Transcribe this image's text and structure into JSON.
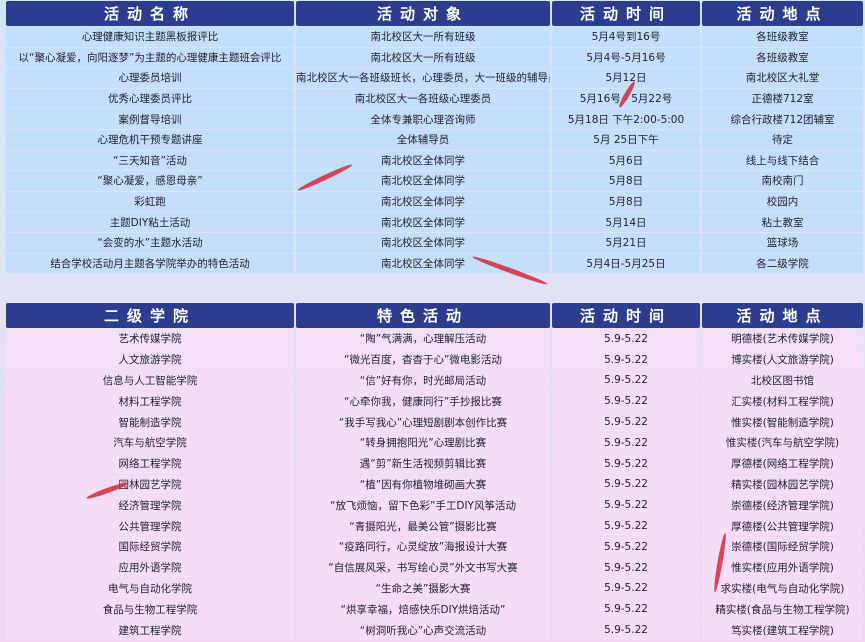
{
  "table1": {
    "header": [
      "活动名称",
      "活动对象",
      "活动时间",
      "活动地点"
    ],
    "rows": [
      [
        "心理健康知识主题黑板报评比",
        "南北校区大一所有班级",
        "5月4号到16号",
        "各班级教室"
      ],
      [
        "以“聚心凝爱，向阳逐梦”为主题的心理健康主题班会评比",
        "南北校区大一所有班级",
        "5月4号-5月16号",
        "各班级教室"
      ],
      [
        "心理委员培训",
        "南北校区大一各班级班长，心理委员，大一班级的辅导员",
        "5月12日",
        "南北校区大礼堂"
      ],
      [
        "优秀心理委员评比",
        "南北校区大一各班级心理委员",
        "5月16号 - 5月22号",
        "正德楼712室"
      ],
      [
        "案例督导培训",
        "全体专兼职心理咨询师",
        "5月18日 下午2:00-5:00",
        "综合行政楼712团辅室"
      ],
      [
        "心理危机干预专题讲座",
        "全体辅导员",
        "5月 25日下午",
        "待定"
      ],
      [
        "“三天知音”活动",
        "南北校区全体同学",
        "5月6日",
        "线上与线下结合"
      ],
      [
        "“聚心凝爱，感恩母亲”",
        "南北校区全体同学",
        "5月8日",
        "南校南门"
      ],
      [
        "彩虹跑",
        "南北校区全体同学",
        "5月8日",
        "校园内"
      ],
      [
        "主题DIY粘土活动",
        "南北校区全体同学",
        "5月14日",
        "粘土教室"
      ],
      [
        "“会变的水”主题水活动",
        "南北校区全体同学",
        "5月21日",
        "篮球场"
      ],
      [
        "结合学校活动月主题各学院举办的特色活动",
        "南北校区全体同学",
        "5月4日-5月25日",
        "各二级学院"
      ]
    ]
  },
  "table2": {
    "header": [
      "二级学院",
      "特色活动",
      "活动时间",
      "活动地点"
    ],
    "rows": [
      [
        "艺术传媒学院",
        "“陶”气满满，心理解压活动",
        "5.9-5.22",
        "明德楼(艺术传媒学院)"
      ],
      [
        "人文旅游学院",
        "“微光百度，杳杳于心”微电影活动",
        "5.9-5.22",
        "博实楼(人文旅游学院)"
      ],
      [
        "信息与人工智能学院",
        "“信”好有你，时光邮局活动",
        "5.9-5.22",
        "北校区图书馆"
      ],
      [
        "材料工程学院",
        "“心牵你我，健康同行”手抄报比赛",
        "5.9-5.22",
        "汇实楼(材料工程学院)"
      ],
      [
        "智能制造学院",
        "“我手写我心”心理短剧剧本创作比赛",
        "5.9-5.22",
        "惟实楼(智能制造学院)"
      ],
      [
        "汽车与航空学院",
        "“转身拥抱阳光”心理剧比赛",
        "5.9-5.22",
        "惟实楼(汽车与航空学院)"
      ],
      [
        "网络工程学院",
        "遇“剪”新生活视频剪辑比赛",
        "5.9-5.22",
        "厚德楼(网络工程学院)"
      ],
      [
        "园林园艺学院",
        "“植”因有你植物堆砌画大赛",
        "5.9-5.22",
        "精实楼(园林园艺学院)"
      ],
      [
        "经济管理学院",
        "“放飞烦恼，留下色彩”手工DIY风筝活动",
        "5.9-5.22",
        "崇德楼(经济管理学院)"
      ],
      [
        "公共管理学院",
        "“青摄阳光，最美公管”摄影比赛",
        "5.9-5.22",
        "厚德楼(公共管理学院)"
      ],
      [
        "国际经贸学院",
        "“疫路同行，心灵绽放”海报设计大赛",
        "5.9-5.22",
        "崇德楼(国际经贸学院)"
      ],
      [
        "应用外语学院",
        "“自信展风采，书写绘心灵”外文书写大赛",
        "5.9-5.22",
        "惟实楼(应用外语学院)"
      ],
      [
        "电气与自动化学院",
        "“生命之美”摄影大赛",
        "5.9-5.22",
        "求实楼(电气与自动化学院)"
      ],
      [
        "食品与生物工程学院",
        "“烘享幸福，焙感快乐DIY烘焙活动”",
        "5.9-5.22",
        "精实楼(食品与生物工程学院)"
      ],
      [
        "建筑工程学院",
        "“树洞听我心”心声交流活动",
        "5.9-5.22",
        "笃实楼(建筑工程学院)"
      ]
    ]
  }
}
